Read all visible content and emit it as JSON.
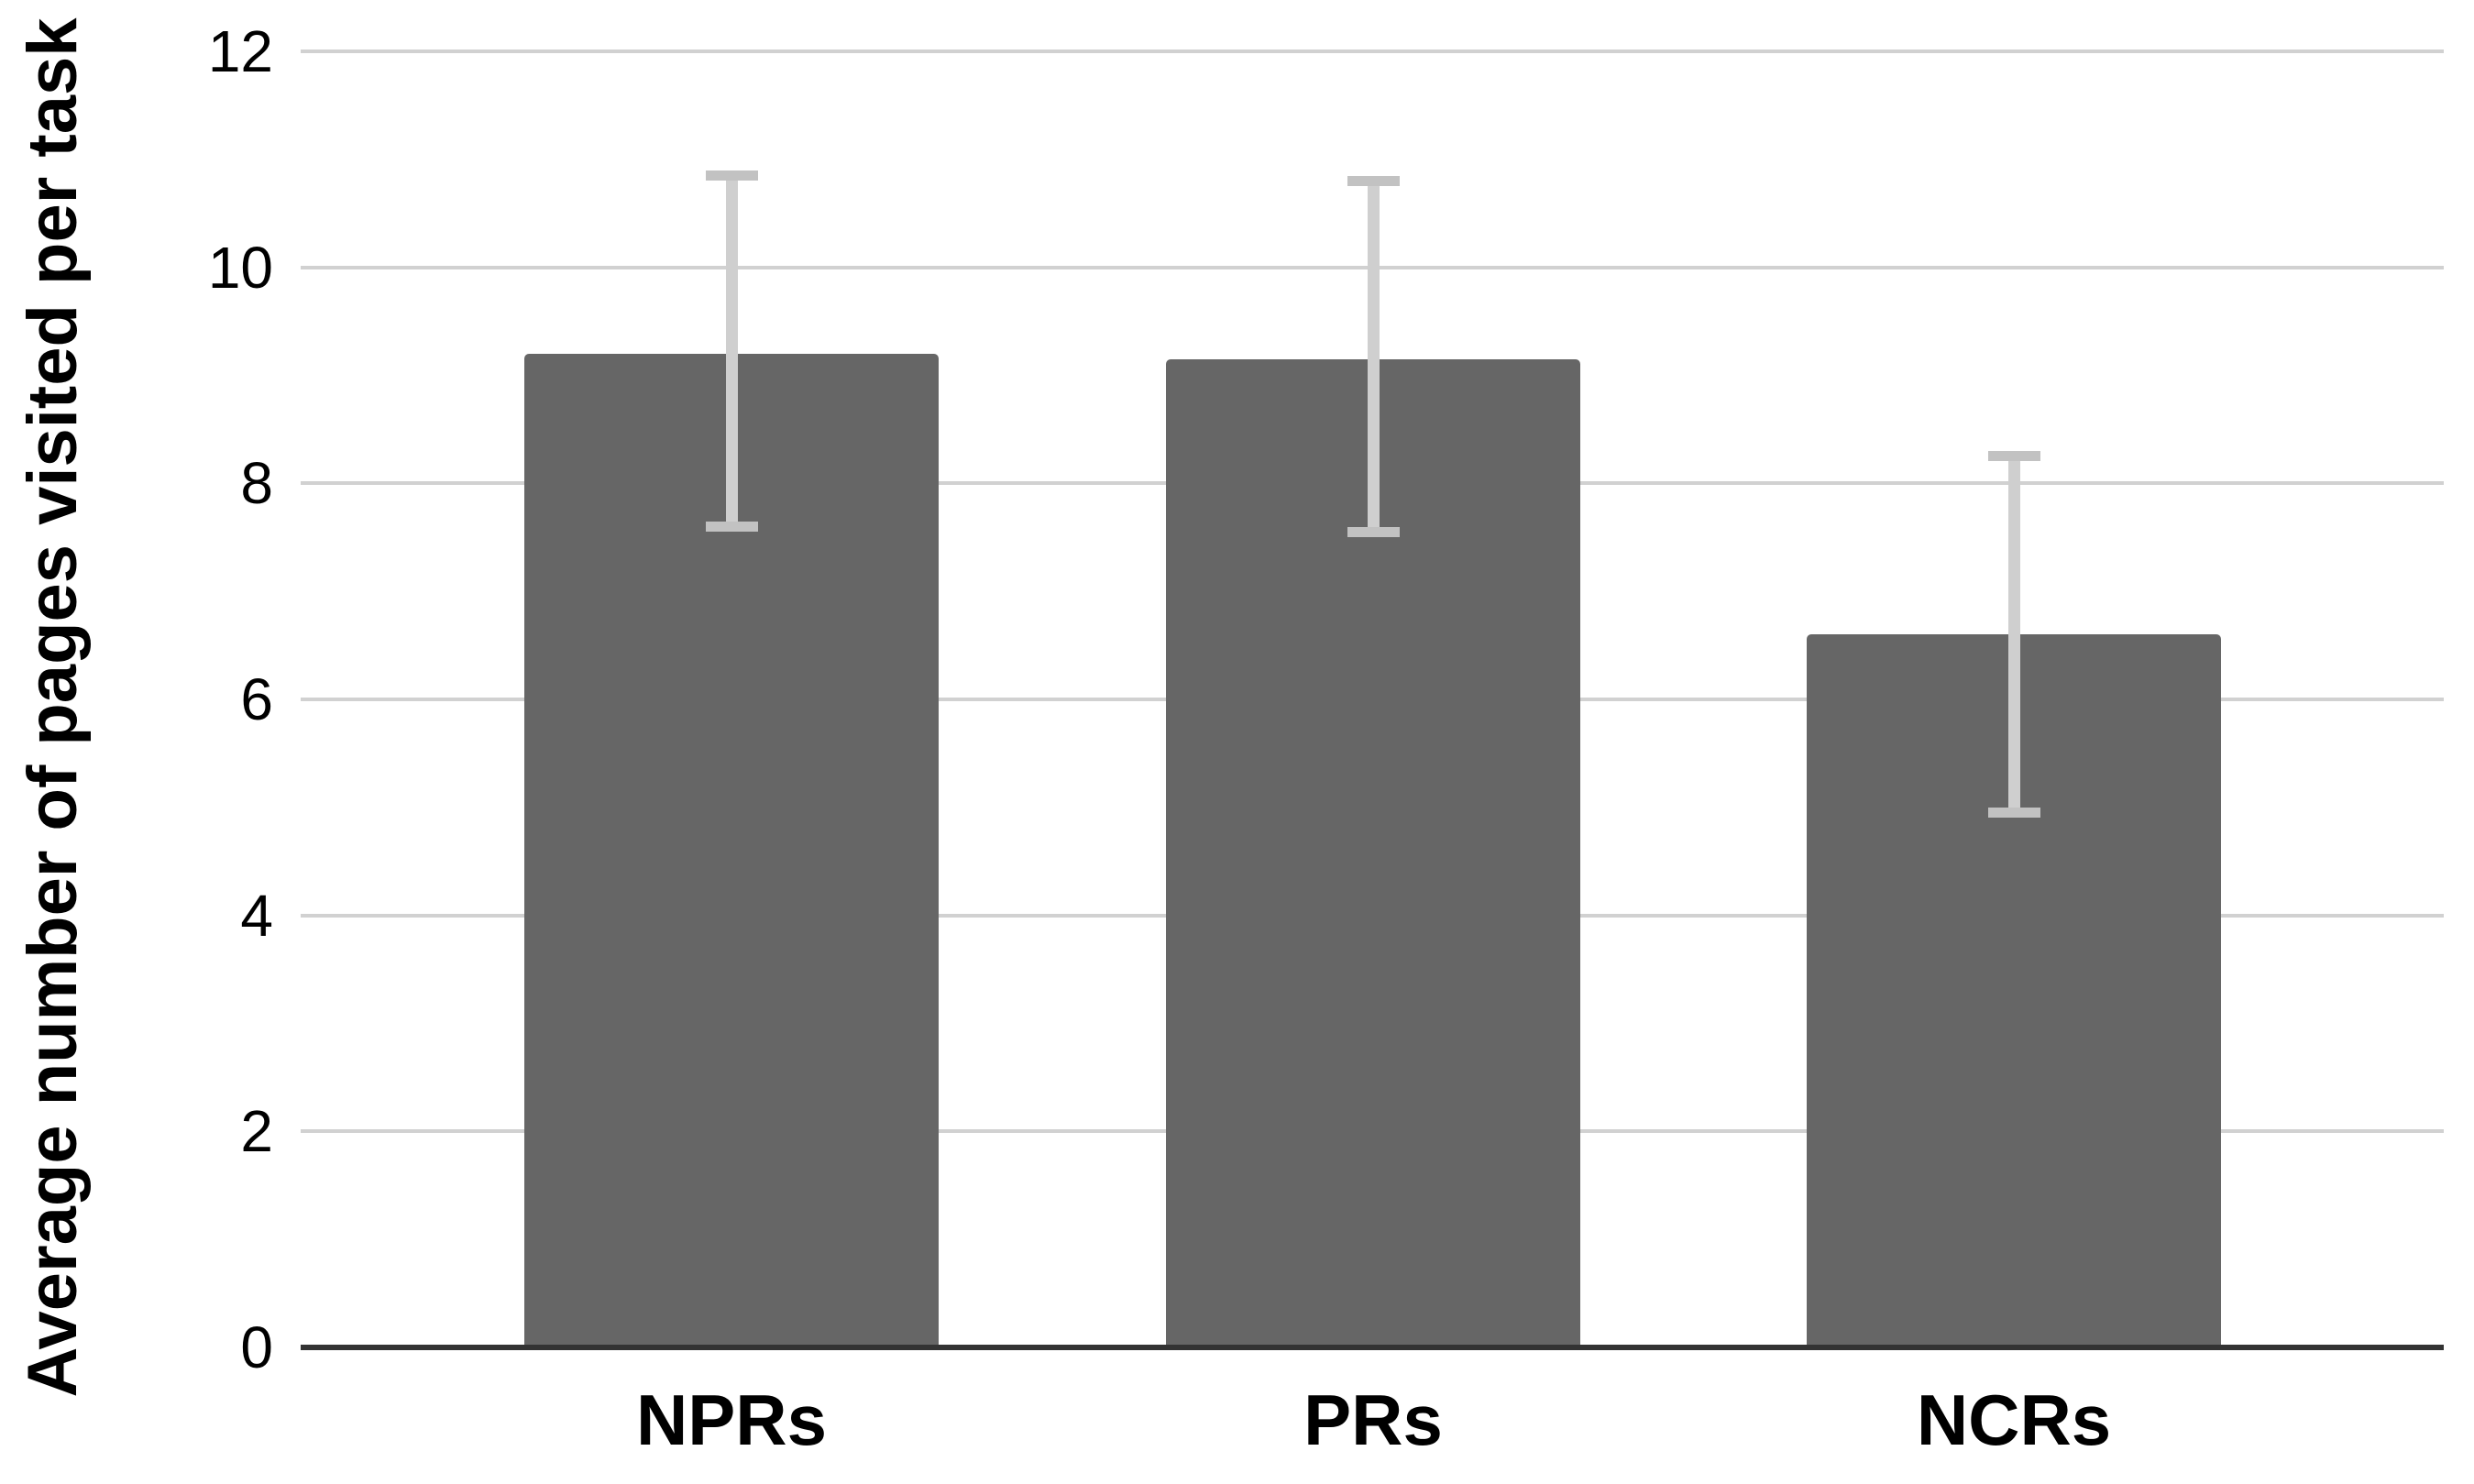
{
  "chart_data": {
    "type": "bar",
    "title": "",
    "xlabel": "",
    "ylabel": "Average number of pages visited per task",
    "categories": [
      "NPRs",
      "PRs",
      "NCRs"
    ],
    "values": [
      9.2,
      9.15,
      6.6
    ],
    "error_bars": {
      "upper": [
        10.85,
        10.8,
        8.25
      ],
      "lower": [
        7.6,
        7.55,
        4.95
      ]
    },
    "ylim": [
      0,
      12
    ],
    "yticks": [
      0,
      2,
      4,
      6,
      8,
      10,
      12
    ],
    "grid": "horizontal-only",
    "legend": "none",
    "colors": {
      "bar": "#666666",
      "gridline": "#d1d1d1",
      "axis_line": "#333333",
      "error_stem": "#cfcfcf",
      "error_cap": "#c2c2c2",
      "text": "#000000"
    }
  }
}
